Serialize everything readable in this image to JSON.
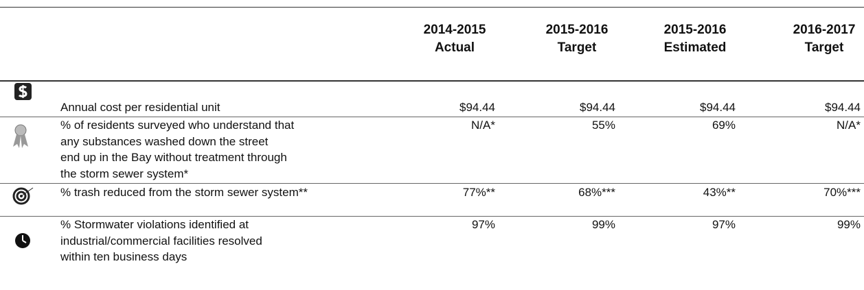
{
  "header": {
    "columns": [
      [
        "2014-2015",
        "Actual"
      ],
      [
        "2015-2016",
        "Target"
      ],
      [
        "2015-2016",
        "Estimated"
      ],
      [
        "2016-2017",
        "Target"
      ]
    ]
  },
  "table": {
    "rows": [
      {
        "label": [
          "Annual cost per residential unit"
        ],
        "values": [
          "$94.44",
          "$94.44",
          "$94.44",
          "$94.44"
        ]
      },
      {
        "label": [
          "% of residents surveyed who understand that",
          "any substances washed down the street",
          "end up in the Bay without treatment through",
          "the storm sewer system*"
        ],
        "values": [
          "N/A*",
          "55%",
          "69%",
          "N/A*"
        ]
      },
      {
        "label": [
          "% trash reduced from the storm sewer system**"
        ],
        "values": [
          "77%**",
          "68%***",
          "43%**",
          "70%***"
        ]
      },
      {
        "label": [
          "% Stormwater violations identified at",
          "industrial/commercial facilities resolved",
          "within ten business days"
        ],
        "values": [
          "97%",
          "99%",
          "97%",
          "99%"
        ]
      }
    ]
  }
}
